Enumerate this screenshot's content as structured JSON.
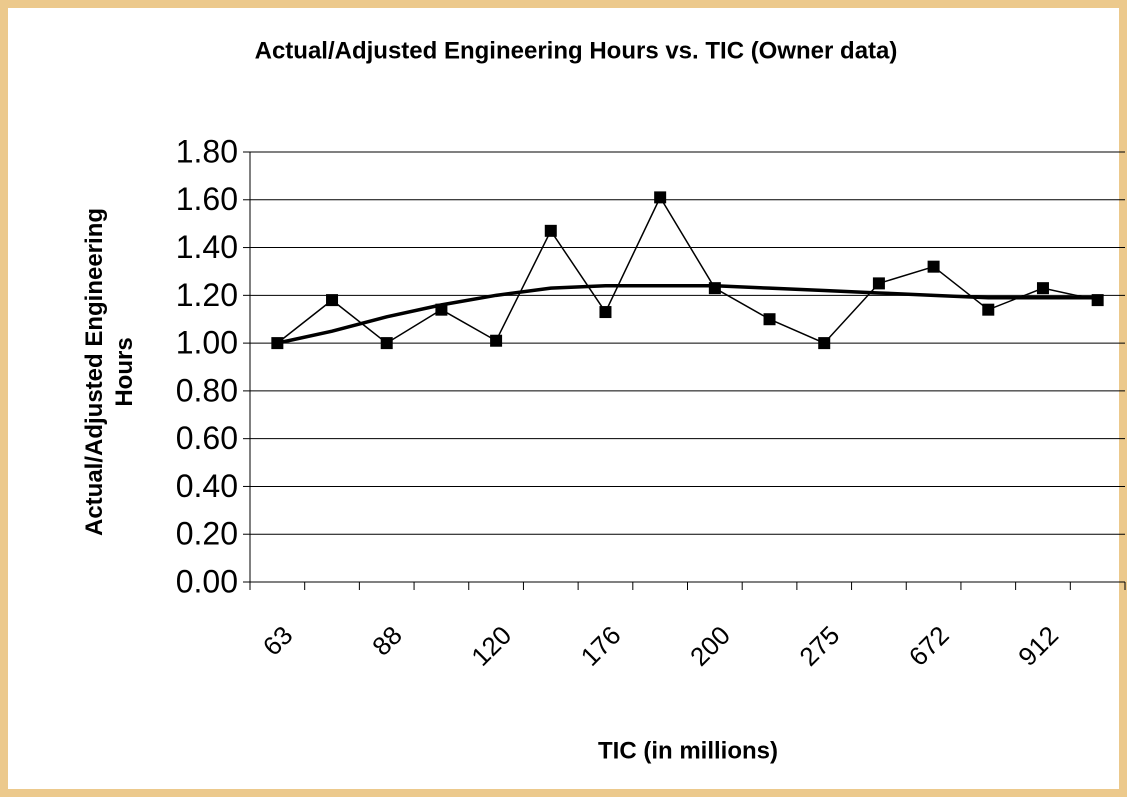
{
  "chart_data": {
    "type": "line",
    "title": "Actual/Adjusted Engineering Hours vs. TIC (Owner data)",
    "xlabel": "TIC (in millions)",
    "ylabel": "Actual/Adjusted Engineering Hours",
    "categories": [
      "63",
      null,
      "88",
      null,
      "120",
      null,
      "176",
      null,
      "200",
      null,
      "275",
      null,
      "672",
      null,
      "912",
      null
    ],
    "series": [
      {
        "color": "#000000",
        "values": [
          1.0,
          1.18,
          1.0,
          1.14,
          1.01,
          1.47,
          1.13,
          1.61,
          1.23,
          1.1,
          1.0,
          1.25,
          1.32,
          1.14,
          1.23,
          1.18
        ]
      },
      {
        "color": "#000000",
        "values": [
          1.0,
          1.05,
          1.11,
          1.16,
          1.2,
          1.23,
          1.24,
          1.24,
          1.24,
          1.23,
          1.22,
          1.21,
          1.2,
          1.19,
          1.19,
          1.19
        ]
      }
    ],
    "ylim": [
      0,
      1.8
    ],
    "yticks": [
      {
        "value": 0,
        "label": "0.00"
      },
      {
        "value": 0.2,
        "label": "0.20"
      },
      {
        "value": 0.4,
        "label": "0.40"
      },
      {
        "value": 0.6,
        "label": "0.60"
      },
      {
        "value": 0.8,
        "label": "0.80"
      },
      {
        "value": 1.0,
        "label": "1.00"
      },
      {
        "value": 1.2,
        "label": "1.20"
      },
      {
        "value": 1.4,
        "label": "1.40"
      },
      {
        "value": 1.6,
        "label": "1.60"
      },
      {
        "value": 1.8,
        "label": "1.80"
      }
    ],
    "grid": true
  }
}
